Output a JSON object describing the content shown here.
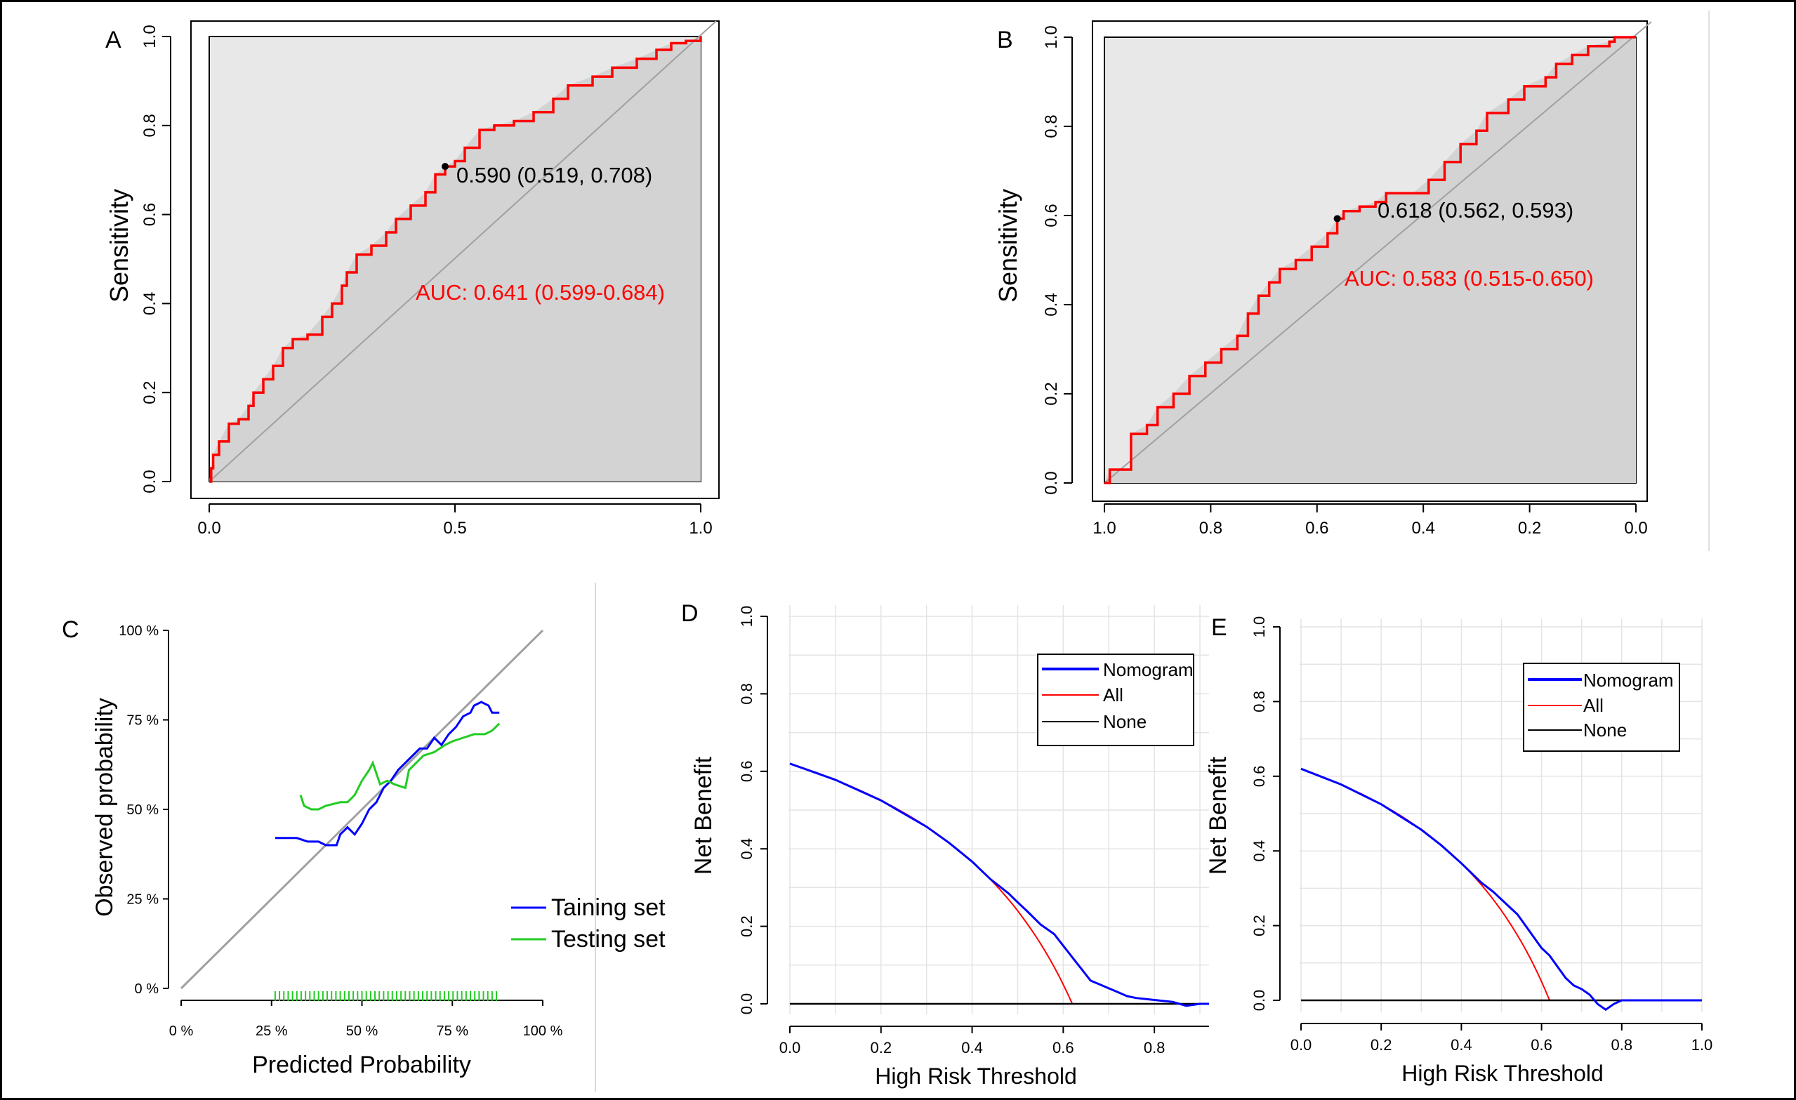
{
  "colors": {
    "roc_line": "#ff0000",
    "panel_outer": "#e8e8e8",
    "panel_inner": "#d3d3d3",
    "diagonal": "#a0a0a0",
    "training": "#0000ff",
    "testing": "#22cc22",
    "nomogram": "#0000ff",
    "all": "#ff0000",
    "none": "#000000",
    "grid": "#e4e4e4"
  },
  "chart_data": [
    {
      "panel_label": "A",
      "type": "line",
      "ylabel": "Sensitivity",
      "xlabel": "",
      "x_ticks": [
        "0.0",
        "0.5",
        "1.0"
      ],
      "y_ticks": [
        "0.0",
        "0.2",
        "0.4",
        "0.6",
        "0.8",
        "1.0"
      ],
      "xlim": [
        0,
        1
      ],
      "ylim": [
        0,
        1
      ],
      "auc_label": "AUC: 0.641 (0.599-0.684)",
      "point_label": "0.590 (0.519, 0.708)",
      "point": [
        0.48,
        0.708
      ],
      "roc_curve": [
        [
          0,
          0
        ],
        [
          0.004,
          0.03
        ],
        [
          0.008,
          0.06
        ],
        [
          0.02,
          0.09
        ],
        [
          0.04,
          0.13
        ],
        [
          0.06,
          0.14
        ],
        [
          0.08,
          0.17
        ],
        [
          0.09,
          0.2
        ],
        [
          0.11,
          0.23
        ],
        [
          0.13,
          0.26
        ],
        [
          0.15,
          0.3
        ],
        [
          0.17,
          0.32
        ],
        [
          0.2,
          0.33
        ],
        [
          0.23,
          0.37
        ],
        [
          0.25,
          0.4
        ],
        [
          0.27,
          0.44
        ],
        [
          0.28,
          0.47
        ],
        [
          0.3,
          0.51
        ],
        [
          0.33,
          0.53
        ],
        [
          0.36,
          0.56
        ],
        [
          0.38,
          0.59
        ],
        [
          0.41,
          0.62
        ],
        [
          0.44,
          0.65
        ],
        [
          0.46,
          0.69
        ],
        [
          0.48,
          0.708
        ],
        [
          0.5,
          0.72
        ],
        [
          0.52,
          0.75
        ],
        [
          0.55,
          0.79
        ],
        [
          0.58,
          0.8
        ],
        [
          0.62,
          0.81
        ],
        [
          0.66,
          0.83
        ],
        [
          0.7,
          0.86
        ],
        [
          0.73,
          0.89
        ],
        [
          0.78,
          0.91
        ],
        [
          0.82,
          0.93
        ],
        [
          0.87,
          0.95
        ],
        [
          0.91,
          0.97
        ],
        [
          0.94,
          0.985
        ],
        [
          0.97,
          0.99
        ],
        [
          1.0,
          1.0
        ]
      ]
    },
    {
      "panel_label": "B",
      "type": "line",
      "ylabel": "Sensitivity",
      "xlabel": "",
      "x_ticks": [
        "1.0",
        "0.8",
        "0.6",
        "0.4",
        "0.2",
        "0.0"
      ],
      "y_ticks": [
        "0.0",
        "0.2",
        "0.4",
        "0.6",
        "0.8",
        "1.0"
      ],
      "xlim": [
        1,
        0
      ],
      "ylim": [
        0,
        1
      ],
      "auc_label": "AUC: 0.583 (0.515-0.650)",
      "point_label": "0.618 (0.562, 0.593)",
      "point": [
        0.562,
        0.593
      ],
      "roc_curve": [
        [
          1.0,
          0
        ],
        [
          0.99,
          0.03
        ],
        [
          0.95,
          0.03
        ],
        [
          0.95,
          0.11
        ],
        [
          0.92,
          0.13
        ],
        [
          0.9,
          0.17
        ],
        [
          0.87,
          0.2
        ],
        [
          0.84,
          0.24
        ],
        [
          0.81,
          0.27
        ],
        [
          0.78,
          0.3
        ],
        [
          0.75,
          0.33
        ],
        [
          0.73,
          0.38
        ],
        [
          0.71,
          0.42
        ],
        [
          0.69,
          0.45
        ],
        [
          0.67,
          0.48
        ],
        [
          0.64,
          0.5
        ],
        [
          0.61,
          0.53
        ],
        [
          0.58,
          0.56
        ],
        [
          0.562,
          0.593
        ],
        [
          0.55,
          0.61
        ],
        [
          0.52,
          0.62
        ],
        [
          0.49,
          0.63
        ],
        [
          0.47,
          0.65
        ],
        [
          0.42,
          0.65
        ],
        [
          0.39,
          0.68
        ],
        [
          0.36,
          0.72
        ],
        [
          0.33,
          0.76
        ],
        [
          0.3,
          0.79
        ],
        [
          0.28,
          0.83
        ],
        [
          0.24,
          0.86
        ],
        [
          0.21,
          0.89
        ],
        [
          0.17,
          0.91
        ],
        [
          0.15,
          0.94
        ],
        [
          0.12,
          0.96
        ],
        [
          0.09,
          0.98
        ],
        [
          0.05,
          0.99
        ],
        [
          0.04,
          1.0
        ],
        [
          0.0,
          1.0
        ]
      ]
    },
    {
      "panel_label": "C",
      "type": "line",
      "xlabel": "Predicted Probability",
      "ylabel": "Observed probability",
      "x_ticks": [
        "0 %",
        "25 %",
        "50 %",
        "75 %",
        "100 %"
      ],
      "y_ticks": [
        "0 %",
        "25 %",
        "50 %",
        "75 %",
        "100 %"
      ],
      "xlim": [
        0,
        100
      ],
      "ylim": [
        0,
        100
      ],
      "series": [
        {
          "name": "Taining set",
          "values": [
            [
              26,
              42
            ],
            [
              32,
              42
            ],
            [
              35,
              41
            ],
            [
              38,
              41
            ],
            [
              40,
              40
            ],
            [
              43,
              40
            ],
            [
              44,
              43
            ],
            [
              46,
              45
            ],
            [
              48,
              43
            ],
            [
              50,
              46
            ],
            [
              52,
              50
            ],
            [
              54,
              52
            ],
            [
              56,
              56
            ],
            [
              58,
              58
            ],
            [
              60,
              61
            ],
            [
              62,
              63
            ],
            [
              64,
              65
            ],
            [
              66,
              67
            ],
            [
              68,
              67
            ],
            [
              70,
              70
            ],
            [
              72,
              68
            ],
            [
              74,
              71
            ],
            [
              76,
              73
            ],
            [
              78,
              76
            ],
            [
              80,
              77
            ],
            [
              81,
              79
            ],
            [
              83,
              80
            ],
            [
              85,
              79
            ],
            [
              86,
              77
            ],
            [
              88,
              77
            ]
          ]
        },
        {
          "name": "Testing set",
          "values": [
            [
              33,
              54
            ],
            [
              34,
              51
            ],
            [
              36,
              50
            ],
            [
              38,
              50
            ],
            [
              40,
              51
            ],
            [
              44,
              52
            ],
            [
              46,
              52
            ],
            [
              48,
              54
            ],
            [
              50,
              58
            ],
            [
              52,
              61
            ],
            [
              53,
              63
            ],
            [
              55,
              57
            ],
            [
              57,
              58
            ],
            [
              59,
              57
            ],
            [
              62,
              56
            ],
            [
              63,
              61
            ],
            [
              65,
              63
            ],
            [
              67,
              65
            ],
            [
              70,
              66
            ],
            [
              73,
              68
            ],
            [
              75,
              69
            ],
            [
              78,
              70
            ],
            [
              81,
              71
            ],
            [
              84,
              71
            ],
            [
              86,
              72
            ],
            [
              88,
              74
            ]
          ]
        }
      ]
    },
    {
      "panel_label": "D",
      "type": "line",
      "xlabel": "High Risk Threshold",
      "ylabel": "Net Benefit",
      "x_ticks": [
        "0.0",
        "0.2",
        "0.4",
        "0.6",
        "0.8"
      ],
      "y_ticks": [
        "0.0",
        "0.2",
        "0.4",
        "0.6",
        "0.8",
        "1.0"
      ],
      "xlim": [
        0,
        0.92
      ],
      "ylim": [
        0,
        1
      ],
      "prevalence": 0.62,
      "legend": [
        "Nomogram",
        "All",
        "None"
      ],
      "series": [
        {
          "name": "Nomogram",
          "values": [
            [
              0,
              0.62
            ],
            [
              0.1,
              0.578
            ],
            [
              0.2,
              0.525
            ],
            [
              0.3,
              0.457
            ],
            [
              0.35,
              0.415
            ],
            [
              0.4,
              0.367
            ],
            [
              0.44,
              0.322
            ],
            [
              0.48,
              0.285
            ],
            [
              0.5,
              0.262
            ],
            [
              0.52,
              0.24
            ],
            [
              0.55,
              0.205
            ],
            [
              0.58,
              0.18
            ],
            [
              0.6,
              0.15
            ],
            [
              0.62,
              0.12
            ],
            [
              0.64,
              0.09
            ],
            [
              0.66,
              0.06
            ],
            [
              0.68,
              0.05
            ],
            [
              0.7,
              0.04
            ],
            [
              0.72,
              0.03
            ],
            [
              0.74,
              0.02
            ],
            [
              0.76,
              0.015
            ],
            [
              0.8,
              0.01
            ],
            [
              0.84,
              0.005
            ],
            [
              0.87,
              -0.005
            ],
            [
              0.9,
              0.0
            ],
            [
              0.92,
              0.0
            ]
          ]
        },
        {
          "name": "All",
          "values": []
        },
        {
          "name": "None",
          "values": [
            [
              0,
              0
            ],
            [
              0.92,
              0
            ]
          ]
        }
      ]
    },
    {
      "panel_label": "E",
      "type": "line",
      "xlabel": "High Risk Threshold",
      "ylabel": "Net Benefit",
      "x_ticks": [
        "0.0",
        "0.2",
        "0.4",
        "0.6",
        "0.8",
        "1.0"
      ],
      "y_ticks": [
        "0.0",
        "0.2",
        "0.4",
        "0.6",
        "0.8",
        "1.0"
      ],
      "xlim": [
        0,
        1
      ],
      "ylim": [
        0,
        1
      ],
      "prevalence": 0.62,
      "legend": [
        "Nomogram",
        "All",
        "None"
      ],
      "series": [
        {
          "name": "Nomogram",
          "values": [
            [
              0,
              0.62
            ],
            [
              0.1,
              0.578
            ],
            [
              0.2,
              0.525
            ],
            [
              0.3,
              0.457
            ],
            [
              0.35,
              0.415
            ],
            [
              0.4,
              0.367
            ],
            [
              0.45,
              0.315
            ],
            [
              0.48,
              0.29
            ],
            [
              0.5,
              0.27
            ],
            [
              0.52,
              0.25
            ],
            [
              0.54,
              0.23
            ],
            [
              0.56,
              0.2
            ],
            [
              0.58,
              0.17
            ],
            [
              0.6,
              0.14
            ],
            [
              0.62,
              0.12
            ],
            [
              0.64,
              0.09
            ],
            [
              0.66,
              0.06
            ],
            [
              0.68,
              0.04
            ],
            [
              0.7,
              0.03
            ],
            [
              0.72,
              0.015
            ],
            [
              0.74,
              -0.01
            ],
            [
              0.76,
              -0.025
            ],
            [
              0.78,
              -0.01
            ],
            [
              0.8,
              0.0
            ],
            [
              1.0,
              0.0
            ]
          ]
        },
        {
          "name": "All",
          "values": []
        },
        {
          "name": "None",
          "values": [
            [
              0,
              0
            ],
            [
              1.0,
              0
            ]
          ]
        }
      ]
    }
  ]
}
